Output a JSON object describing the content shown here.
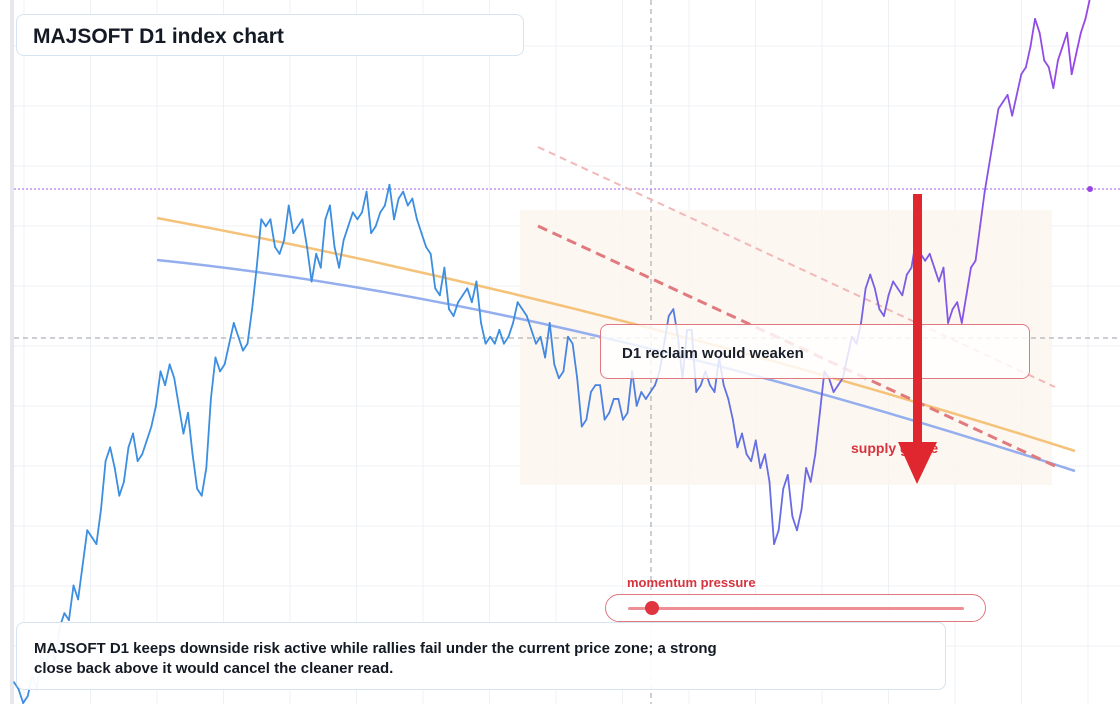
{
  "title": "MAJSOFT D1 index chart",
  "callout": {
    "text": "D1 reclaim would weaken"
  },
  "supply_label": "supply grade",
  "momentum": {
    "label": "momentum pressure",
    "level": 0.07
  },
  "summary": "MAJSOFT D1 keeps downside risk active while rallies fail under the current price zone; a strong close back above it would cancel the cleaner read.",
  "colors": {
    "price_early": "#3b8ee0",
    "price_late": "#9a45e6",
    "orange_line": "#f5c27a",
    "blue_line": "#95aeee",
    "red_dashed": "#e07a7d",
    "arrow": "#e0262e",
    "zone_fill": "#fdf5ef"
  },
  "chart_data": {
    "type": "line",
    "title": "MAJSOFT D1 index chart",
    "xlabel": "",
    "ylabel": "",
    "grid": true,
    "ylim": [
      0,
      100
    ],
    "xlim": [
      0,
      200
    ],
    "series": [
      {
        "values": [
          3,
          2,
          0,
          1,
          4,
          2,
          7,
          5,
          9,
          6,
          11,
          13,
          12,
          17,
          15,
          20,
          25,
          24,
          23,
          28,
          35,
          37,
          34,
          30,
          32,
          37,
          39,
          35,
          36,
          38,
          40,
          43,
          48,
          46,
          49,
          47,
          43,
          39,
          42,
          36,
          31,
          30,
          34,
          44,
          50,
          48,
          49,
          52,
          55,
          53,
          51,
          52,
          57,
          63,
          70,
          69,
          70,
          66,
          65,
          67,
          72,
          68,
          69,
          70,
          66,
          61,
          65,
          63,
          70,
          72,
          66,
          63,
          67,
          69,
          71,
          70,
          71,
          74,
          68,
          69,
          71,
          72,
          75,
          70,
          73,
          74,
          72,
          73,
          70,
          68,
          66,
          65,
          60,
          59,
          63,
          57,
          56,
          58,
          59,
          60,
          58,
          61,
          55,
          52,
          53,
          52,
          54,
          52,
          53,
          55,
          58,
          57,
          56,
          54,
          52,
          53,
          50,
          55,
          49,
          47,
          48,
          53,
          52,
          47,
          40,
          41,
          45,
          46,
          46,
          41,
          42,
          44,
          44,
          41,
          42,
          48,
          43,
          45,
          44,
          45,
          46,
          48,
          52,
          56,
          57,
          53,
          47,
          54,
          54,
          45,
          46,
          48,
          46,
          45,
          50,
          46,
          44,
          41,
          37,
          39,
          36,
          35,
          38,
          34,
          36,
          32,
          23,
          25,
          31,
          33,
          27,
          25,
          28,
          34,
          32,
          36,
          42,
          48,
          47,
          45,
          46,
          47,
          50,
          53,
          52,
          55,
          60,
          62,
          60,
          57,
          56,
          59,
          61,
          60,
          59,
          62,
          63,
          67,
          65,
          64,
          65,
          63,
          61,
          63,
          55,
          57,
          58,
          55,
          59,
          63,
          64,
          69,
          74,
          78,
          82,
          86,
          87,
          88,
          85,
          88,
          91,
          92,
          95,
          99,
          97,
          93,
          92,
          89,
          93,
          95,
          97,
          91,
          94,
          97,
          99,
          102
        ]
      }
    ],
    "annotations": [
      "D1 reclaim would weaken",
      "supply grade",
      "momentum pressure"
    ]
  }
}
